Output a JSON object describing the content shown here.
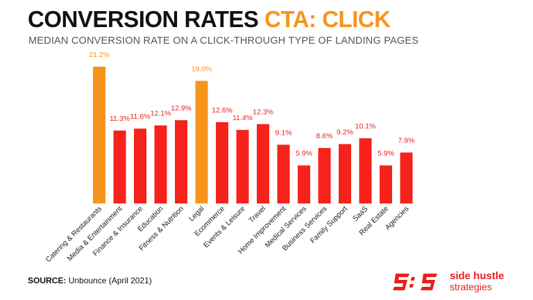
{
  "header": {
    "title_main": "CONVERSION RATES",
    "title_accent": "CTA: CLICK",
    "subtitle": "MEDIAN CONVERSION RATE ON A CLICK-THROUGH TYPE OF LANDING PAGES"
  },
  "footer": {
    "source_label": "SOURCE:",
    "source_text": "Unbounce (April 2021)"
  },
  "brand": {
    "name": "side hustle",
    "tagline": "strategies",
    "color": "#e8201e"
  },
  "colors": {
    "highlight": "#f7941d",
    "bar": "#f5231c",
    "label_highlight": "#f7941d",
    "label_default": "#e8201e"
  },
  "chart_data": {
    "type": "bar",
    "categories": [
      "Catering & Restaurants",
      "Media & Entertainment",
      "Finance & Insurance",
      "Education",
      "Fitness & Nutrition",
      "Legal",
      "Ecommerce",
      "Events & Leisure",
      "Travel",
      "Home Improvement",
      "Medical Services",
      "Business Services",
      "Family Support",
      "SaaS",
      "Real Estate",
      "Agencies"
    ],
    "values": [
      21.2,
      11.3,
      11.6,
      12.1,
      12.9,
      19.0,
      12.6,
      11.4,
      12.3,
      9.1,
      5.9,
      8.6,
      9.2,
      10.1,
      5.9,
      7.9
    ],
    "data_labels": [
      "21.2%",
      "11.3%",
      "11.6%",
      "12.1%",
      "12.9%",
      "19.0%",
      "12.6%",
      "11.4%",
      "12.3%",
      "9.1%",
      "5.9%",
      "8.6%",
      "9.2%",
      "10.1%",
      "5.9%",
      "7.9%"
    ],
    "highlighted": [
      "Catering & Restaurants",
      "Legal"
    ],
    "title": "CONVERSION RATES CTA: CLICK",
    "xlabel": "",
    "ylabel": "",
    "ylim": [
      0,
      21.2
    ],
    "grid": false,
    "legend": "none"
  }
}
